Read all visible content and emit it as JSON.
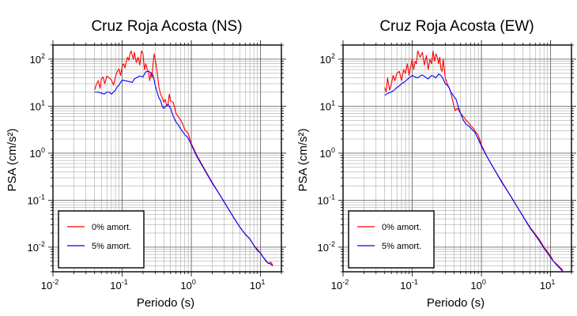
{
  "chart_data": [
    {
      "type": "line",
      "title": "Cruz Roja Acosta (NS)",
      "xlabel": "Periodo (s)",
      "ylabel": "PSA (cm/s²)",
      "xscale": "log",
      "yscale": "log",
      "xlim": [
        0.01,
        20
      ],
      "ylim": [
        0.003,
        200
      ],
      "grid": true,
      "legend_position": "bottom-left",
      "x_ticks": [
        {
          "base": "10",
          "exp": "-2"
        },
        {
          "base": "10",
          "exp": "-1"
        },
        {
          "base": "10",
          "exp": "0"
        },
        {
          "base": "10",
          "exp": "1"
        }
      ],
      "y_ticks": [
        {
          "base": "10",
          "exp": "2"
        },
        {
          "base": "10",
          "exp": "1"
        },
        {
          "base": "10",
          "exp": "0"
        },
        {
          "base": "10",
          "exp": "-1"
        },
        {
          "base": "10",
          "exp": "-2"
        }
      ],
      "series": [
        {
          "name": "0% amort.",
          "color": "#ff0000",
          "x": [
            0.04,
            0.042,
            0.045,
            0.048,
            0.05,
            0.053,
            0.056,
            0.06,
            0.065,
            0.07,
            0.075,
            0.08,
            0.085,
            0.09,
            0.095,
            0.1,
            0.105,
            0.11,
            0.115,
            0.12,
            0.125,
            0.13,
            0.135,
            0.14,
            0.145,
            0.15,
            0.16,
            0.17,
            0.18,
            0.19,
            0.2,
            0.21,
            0.22,
            0.23,
            0.24,
            0.25,
            0.26,
            0.27,
            0.28,
            0.29,
            0.3,
            0.32,
            0.34,
            0.36,
            0.38,
            0.4,
            0.42,
            0.44,
            0.46,
            0.48,
            0.5,
            0.55,
            0.6,
            0.65,
            0.7,
            0.75,
            0.8,
            0.9,
            1.0,
            1.2,
            1.5,
            2.0,
            2.5,
            3.0,
            4.0,
            5.0,
            6.0,
            7.0,
            8.0,
            9.0,
            10.0,
            11.0,
            12.0,
            13.0,
            14.0,
            15.0
          ],
          "y": [
            22,
            28,
            35,
            24,
            38,
            42,
            30,
            44,
            40,
            36,
            28,
            42,
            55,
            62,
            45,
            70,
            80,
            65,
            90,
            110,
            95,
            130,
            150,
            120,
            100,
            140,
            85,
            110,
            75,
            150,
            130,
            60,
            80,
            60,
            55,
            35,
            50,
            40,
            80,
            130,
            100,
            55,
            25,
            18,
            15,
            12,
            14,
            10,
            11,
            18,
            13,
            12,
            7,
            6,
            5,
            4.2,
            3.2,
            2.6,
            1.6,
            0.9,
            0.5,
            0.24,
            0.14,
            0.09,
            0.045,
            0.027,
            0.019,
            0.015,
            0.011,
            0.009,
            0.0075,
            0.006,
            0.005,
            0.0045,
            0.0048,
            0.0042
          ]
        },
        {
          "name": "5% amort.",
          "color": "#0000ff",
          "x": [
            0.04,
            0.045,
            0.05,
            0.055,
            0.06,
            0.065,
            0.07,
            0.075,
            0.08,
            0.085,
            0.09,
            0.095,
            0.1,
            0.11,
            0.12,
            0.13,
            0.14,
            0.15,
            0.16,
            0.17,
            0.18,
            0.19,
            0.2,
            0.22,
            0.24,
            0.26,
            0.28,
            0.3,
            0.32,
            0.34,
            0.36,
            0.38,
            0.4,
            0.43,
            0.46,
            0.5,
            0.55,
            0.6,
            0.65,
            0.7,
            0.8,
            0.9,
            1.0,
            1.2,
            1.5,
            2.0,
            2.5,
            3.0,
            4.0,
            5.0,
            6.0,
            7.0,
            8.0,
            9.0,
            10.0,
            11.0,
            12.0,
            13.0,
            14.0,
            15.0
          ],
          "y": [
            20,
            20,
            19,
            18,
            20,
            20,
            18,
            20,
            22,
            26,
            28,
            32,
            36,
            35,
            34,
            33,
            32,
            38,
            40,
            42,
            44,
            43,
            42,
            54,
            55,
            52,
            45,
            28,
            20,
            15,
            13,
            10,
            9,
            10,
            11,
            9,
            6,
            4.6,
            4.0,
            3.3,
            2.5,
            2.1,
            1.5,
            0.85,
            0.48,
            0.23,
            0.14,
            0.09,
            0.045,
            0.027,
            0.019,
            0.015,
            0.011,
            0.0085,
            0.0075,
            0.006,
            0.0052,
            0.0045,
            0.0044,
            0.004
          ]
        }
      ]
    },
    {
      "type": "line",
      "title": "Cruz Roja Acosta (EW)",
      "xlabel": "Periodo (s)",
      "ylabel": "PSA (cm/s²)",
      "xscale": "log",
      "yscale": "log",
      "xlim": [
        0.01,
        20
      ],
      "ylim": [
        0.003,
        200
      ],
      "grid": true,
      "legend_position": "bottom-left",
      "x_ticks": [
        {
          "base": "10",
          "exp": "-2"
        },
        {
          "base": "10",
          "exp": "-1"
        },
        {
          "base": "10",
          "exp": "0"
        },
        {
          "base": "10",
          "exp": "1"
        }
      ],
      "y_ticks": [
        {
          "base": "10",
          "exp": "2"
        },
        {
          "base": "10",
          "exp": "1"
        },
        {
          "base": "10",
          "exp": "0"
        },
        {
          "base": "10",
          "exp": "-1"
        },
        {
          "base": "10",
          "exp": "-2"
        }
      ],
      "series": [
        {
          "name": "0% amort.",
          "color": "#ff0000",
          "x": [
            0.04,
            0.042,
            0.044,
            0.047,
            0.05,
            0.053,
            0.056,
            0.06,
            0.065,
            0.07,
            0.075,
            0.08,
            0.085,
            0.09,
            0.095,
            0.1,
            0.105,
            0.11,
            0.115,
            0.12,
            0.13,
            0.14,
            0.15,
            0.16,
            0.17,
            0.18,
            0.19,
            0.2,
            0.21,
            0.22,
            0.23,
            0.24,
            0.25,
            0.26,
            0.27,
            0.28,
            0.3,
            0.32,
            0.34,
            0.36,
            0.38,
            0.4,
            0.42,
            0.45,
            0.5,
            0.55,
            0.6,
            0.65,
            0.7,
            0.75,
            0.8,
            0.9,
            1.0,
            1.2,
            1.5,
            2.0,
            2.5,
            3.0,
            4.0,
            5.0,
            6.0,
            7.0,
            8.0,
            9.0,
            10.0,
            11.0,
            12.0,
            13.0,
            14.0,
            15.0
          ],
          "y": [
            25,
            20,
            40,
            22,
            30,
            45,
            35,
            50,
            55,
            35,
            60,
            50,
            80,
            45,
            70,
            100,
            60,
            90,
            80,
            150,
            110,
            140,
            75,
            120,
            60,
            100,
            80,
            150,
            90,
            130,
            110,
            80,
            110,
            60,
            55,
            100,
            40,
            30,
            25,
            20,
            14,
            10,
            8,
            9,
            7,
            6,
            5,
            4.5,
            3.8,
            3.5,
            3.0,
            2.4,
            1.5,
            0.85,
            0.48,
            0.24,
            0.14,
            0.09,
            0.045,
            0.027,
            0.019,
            0.014,
            0.01,
            0.008,
            0.0065,
            0.005,
            0.0045,
            0.004,
            0.0036,
            0.0032
          ]
        },
        {
          "name": "5% amort.",
          "color": "#0000ff",
          "x": [
            0.04,
            0.045,
            0.05,
            0.055,
            0.06,
            0.065,
            0.07,
            0.075,
            0.08,
            0.09,
            0.1,
            0.11,
            0.12,
            0.13,
            0.14,
            0.15,
            0.16,
            0.17,
            0.18,
            0.19,
            0.2,
            0.22,
            0.24,
            0.26,
            0.28,
            0.3,
            0.32,
            0.34,
            0.36,
            0.38,
            0.4,
            0.43,
            0.46,
            0.5,
            0.55,
            0.6,
            0.65,
            0.7,
            0.8,
            0.9,
            1.0,
            1.2,
            1.5,
            2.0,
            2.5,
            3.0,
            4.0,
            5.0,
            6.0,
            7.0,
            8.0,
            9.0,
            10.0,
            11.0,
            12.0,
            13.0,
            14.0,
            15.0
          ],
          "y": [
            17,
            19,
            20,
            22,
            25,
            27,
            30,
            32,
            34,
            40,
            45,
            42,
            40,
            44,
            46,
            43,
            40,
            38,
            42,
            45,
            44,
            40,
            48,
            45,
            38,
            30,
            28,
            25,
            20,
            18,
            16,
            14,
            10,
            7,
            5,
            4.1,
            3.8,
            3.4,
            2.8,
            2.0,
            1.4,
            0.85,
            0.48,
            0.23,
            0.14,
            0.09,
            0.045,
            0.026,
            0.018,
            0.013,
            0.0095,
            0.0075,
            0.006,
            0.005,
            0.0043,
            0.0038,
            0.0034,
            0.003
          ]
        }
      ]
    }
  ]
}
